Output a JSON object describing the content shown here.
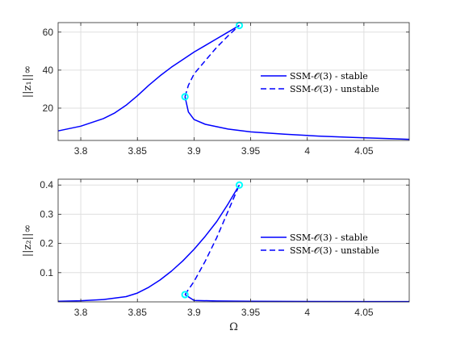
{
  "chart_data": [
    {
      "type": "line",
      "ylabel": "||z₁||∞",
      "xlabel": "",
      "xlim": [
        3.78,
        4.09
      ],
      "ylim": [
        3,
        65
      ],
      "xticks": [
        3.8,
        3.85,
        3.9,
        3.95,
        4,
        4.05
      ],
      "xtick_labels": [
        "3.8",
        "3.85",
        "3.9",
        "3.95",
        "4",
        "4.05"
      ],
      "yticks": [
        20,
        40,
        60
      ],
      "ytick_labels": [
        "20",
        "40",
        "60"
      ],
      "grid": true,
      "legend_position": "right",
      "series": [
        {
          "name": "SSM-𝒪(3) - stable",
          "style": "solid",
          "x": [
            3.78,
            3.8,
            3.82,
            3.83,
            3.84,
            3.85,
            3.86,
            3.87,
            3.88,
            3.89,
            3.9,
            3.91,
            3.92,
            3.93,
            3.94
          ],
          "y": [
            8,
            10.5,
            14.5,
            17.5,
            21.5,
            26.5,
            32,
            37,
            41.5,
            45.5,
            49.5,
            53,
            56.5,
            60,
            63.5
          ]
        },
        {
          "name": "SSM-𝒪(3) - unstable",
          "style": "dashed",
          "x": [
            3.892,
            3.895,
            3.9,
            3.91,
            3.92,
            3.93,
            3.94
          ],
          "y": [
            26,
            32,
            38,
            45,
            52,
            58,
            63.5
          ]
        },
        {
          "name": "",
          "style": "solid",
          "x": [
            3.892,
            3.895,
            3.9,
            3.91,
            3.93,
            3.95,
            3.98,
            4.01,
            4.04,
            4.07,
            4.09
          ],
          "y": [
            26,
            18,
            14,
            11.5,
            9,
            7.5,
            6.3,
            5.3,
            4.6,
            4.0,
            3.6
          ]
        }
      ],
      "markers": [
        {
          "x": 3.892,
          "y": 26
        },
        {
          "x": 3.94,
          "y": 63.5
        }
      ]
    },
    {
      "type": "line",
      "ylabel": "||z₂||∞",
      "xlabel": "Ω",
      "xlim": [
        3.78,
        4.09
      ],
      "ylim": [
        0,
        0.42
      ],
      "xticks": [
        3.8,
        3.85,
        3.9,
        3.95,
        4,
        4.05
      ],
      "xtick_labels": [
        "3.8",
        "3.85",
        "3.9",
        "3.95",
        "4",
        "4.05"
      ],
      "yticks": [
        0.1,
        0.2,
        0.3,
        0.4
      ],
      "ytick_labels": [
        "0.1",
        "0.2",
        "0.3",
        "0.4"
      ],
      "grid": true,
      "legend_position": "right",
      "series": [
        {
          "name": "SSM-𝒪(3) - stable",
          "style": "solid",
          "x": [
            3.78,
            3.8,
            3.82,
            3.84,
            3.85,
            3.86,
            3.87,
            3.88,
            3.89,
            3.9,
            3.91,
            3.92,
            3.93,
            3.94
          ],
          "y": [
            0.002,
            0.004,
            0.008,
            0.018,
            0.03,
            0.05,
            0.075,
            0.105,
            0.14,
            0.18,
            0.225,
            0.275,
            0.335,
            0.4
          ]
        },
        {
          "name": "SSM-𝒪(3) - unstable",
          "style": "dashed",
          "x": [
            3.892,
            3.9,
            3.91,
            3.92,
            3.93,
            3.94
          ],
          "y": [
            0.025,
            0.07,
            0.14,
            0.22,
            0.31,
            0.4
          ]
        },
        {
          "name": "",
          "style": "solid",
          "x": [
            3.892,
            3.9,
            3.92,
            3.95,
            4.0,
            4.05,
            4.09
          ],
          "y": [
            0.025,
            0.005,
            0.003,
            0.002,
            0.0015,
            0.001,
            0.001
          ]
        }
      ],
      "markers": [
        {
          "x": 3.892,
          "y": 0.025
        },
        {
          "x": 3.94,
          "y": 0.4
        }
      ]
    }
  ],
  "colors": {
    "line": "#0000ff",
    "marker": "#00ffff",
    "grid": "#dfdfdf",
    "axis": "#262626"
  }
}
